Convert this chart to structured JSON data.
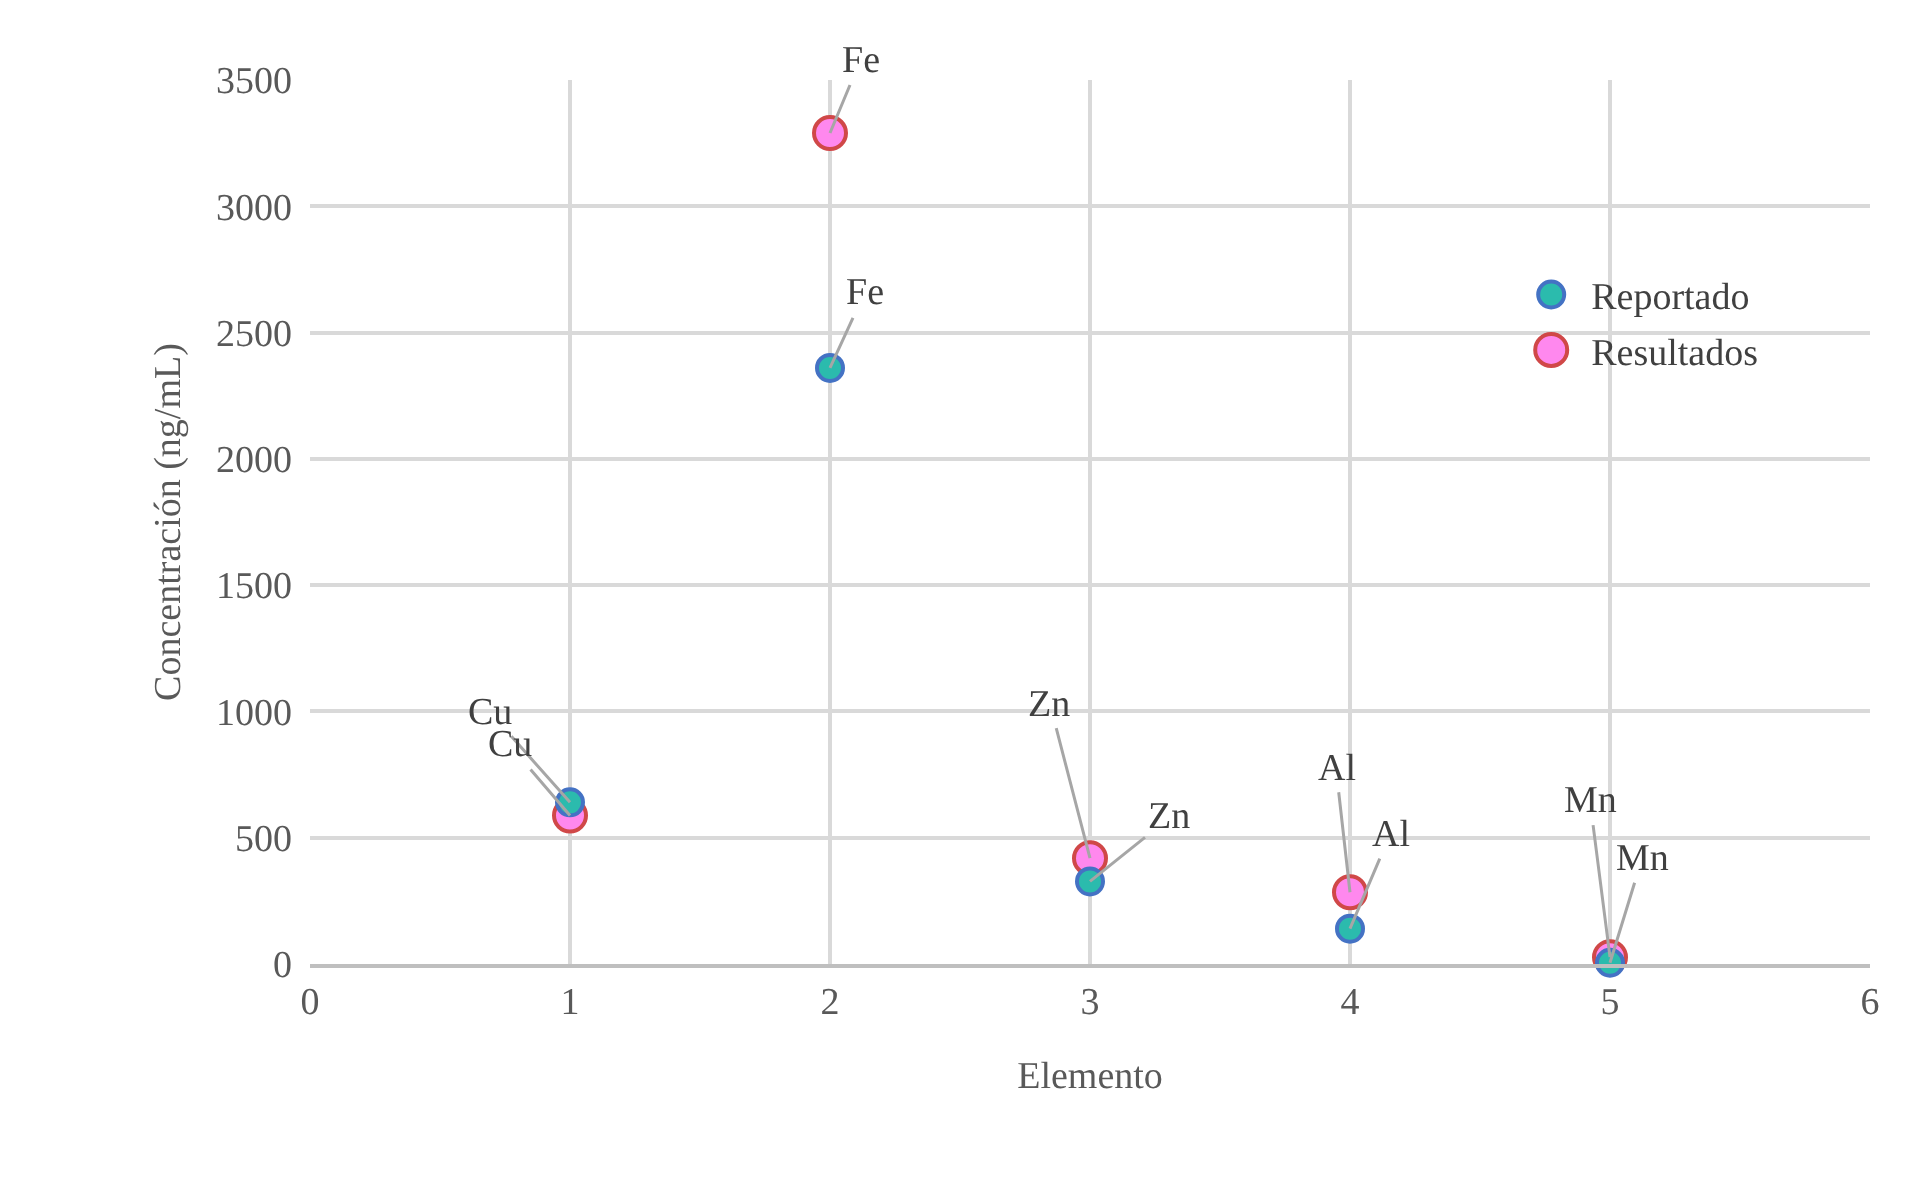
{
  "chart_data": {
    "type": "scatter",
    "xlabel": "Elemento",
    "ylabel": "Concentración (ng/mL)",
    "x": [
      1,
      2,
      3,
      4,
      5
    ],
    "series": [
      {
        "name": "Reportado",
        "color": "#2bbbad",
        "values": [
          640,
          2360,
          327,
          140,
          5
        ]
      },
      {
        "name": "Resultados",
        "color": "#ff88ee",
        "values": [
          588,
          3290,
          419,
          284,
          27
        ]
      }
    ],
    "annotations": [
      {
        "text": "Cu",
        "x": 1,
        "y": 640
      },
      {
        "text": "Fe",
        "x": 2,
        "y": 2360
      },
      {
        "text": "Zn",
        "x": 3,
        "y": 327
      },
      {
        "text": "Al",
        "x": 4,
        "y": 140
      },
      {
        "text": "Mn",
        "x": 5,
        "y": 5
      },
      {
        "text": "Cu",
        "x": 1,
        "y": 588
      },
      {
        "text": "Fe",
        "x": 2,
        "y": 3290
      },
      {
        "text": "Zn",
        "x": 3,
        "y": 419
      },
      {
        "text": "Al",
        "x": 4,
        "y": 284
      },
      {
        "text": "Mn",
        "x": 5,
        "y": 27
      }
    ],
    "xlim": [
      0,
      6
    ],
    "xticks": [
      0,
      1,
      2,
      3,
      4,
      5,
      6
    ],
    "ylim": [
      0,
      3500
    ],
    "yticks": [
      0,
      500,
      1000,
      1500,
      2000,
      2500,
      3000,
      3500
    ],
    "grid": true,
    "legend": "right",
    "marker": "circle"
  }
}
